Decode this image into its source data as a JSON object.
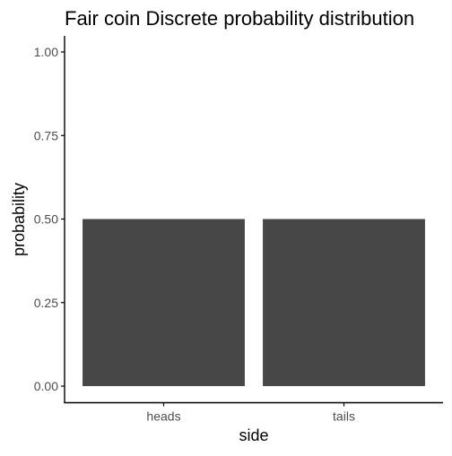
{
  "chart_data": {
    "type": "bar",
    "title": "Fair coin Discrete probability distribution",
    "xlabel": "side",
    "ylabel": "probability",
    "categories": [
      "heads",
      "tails"
    ],
    "values": [
      0.5,
      0.5
    ],
    "ylim": [
      0,
      1.0
    ],
    "yticks": [
      "0.00",
      "0.25",
      "0.50",
      "0.75",
      "1.00"
    ],
    "ytick_values": [
      0,
      0.25,
      0.5,
      0.75,
      1.0
    ],
    "grid": false,
    "legend": "none",
    "bar_color": "#474747",
    "axis_color": "#000000",
    "text_color": "#000000",
    "tick_text_color": "#4d4d4d",
    "background": "#ffffff"
  }
}
